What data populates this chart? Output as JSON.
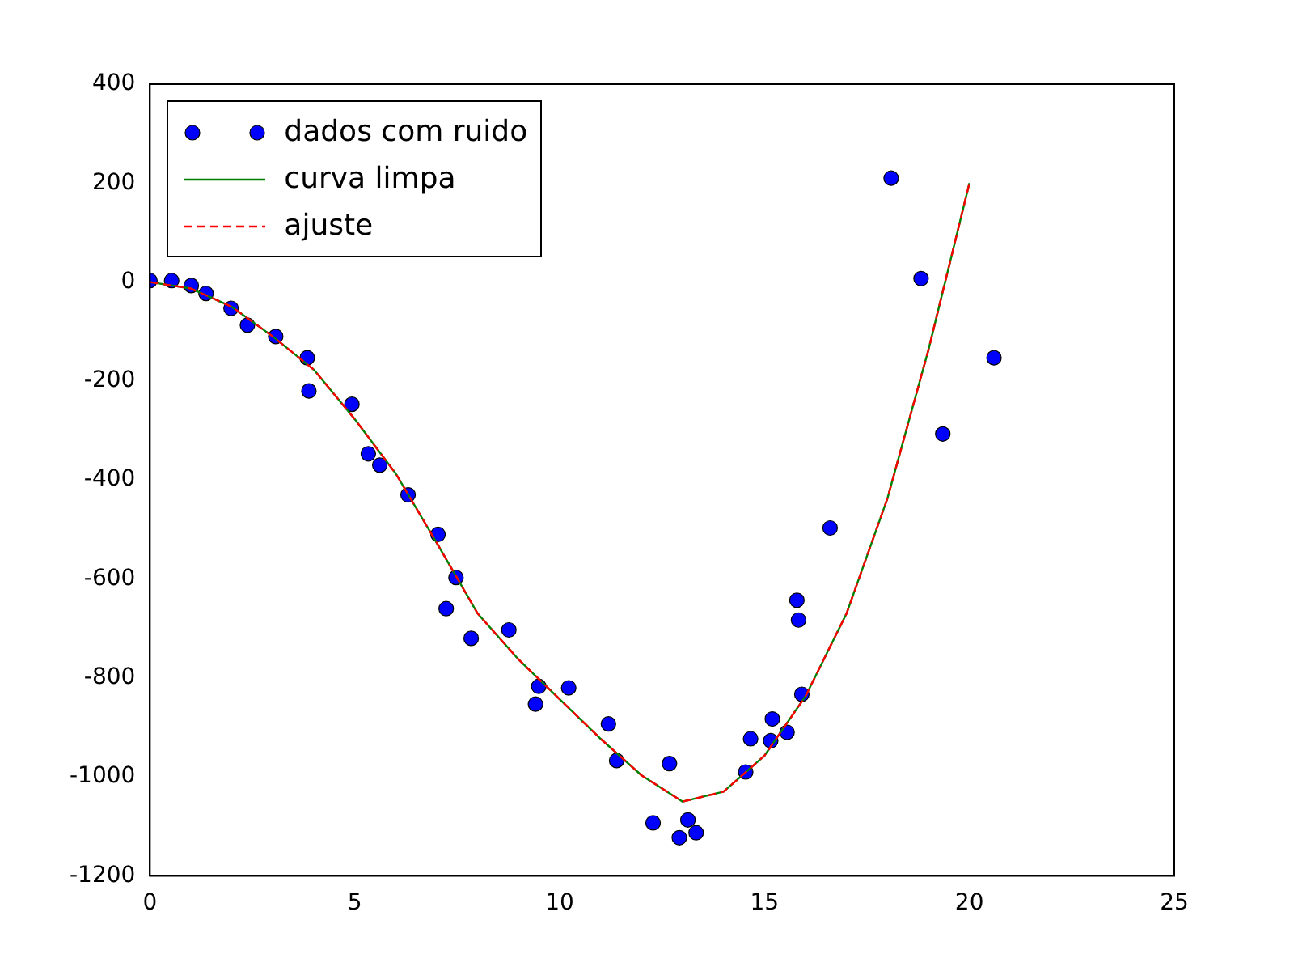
{
  "chart_data": {
    "type": "scatter",
    "xlim": [
      0,
      25
    ],
    "ylim": [
      -1200,
      400
    ],
    "xticks": [
      0,
      5,
      10,
      15,
      20,
      25
    ],
    "yticks": [
      -1200,
      -1000,
      -800,
      -600,
      -400,
      -200,
      0,
      200,
      400
    ],
    "grid": false,
    "legend": "top left",
    "series": [
      {
        "type": "scatter",
        "name": "dados com ruido",
        "color": "#0000ff",
        "marker": "circle",
        "x": [
          0,
          0.53,
          1.01,
          1.37,
          1.98,
          2.38,
          3.07,
          3.84,
          3.88,
          4.93,
          5.33,
          5.61,
          6.3,
          7.03,
          7.47,
          7.23,
          7.84,
          8.76,
          9.49,
          9.41,
          10.22,
          11.19,
          11.39,
          12.28,
          12.68,
          12.92,
          13.13,
          13.33,
          14.54,
          14.66,
          15.15,
          15.19,
          15.55,
          15.79,
          15.83,
          15.91,
          16.6,
          18.09,
          18.82,
          19.35,
          20.6
        ],
        "values": [
          3,
          3,
          -7,
          -23,
          -53,
          -87,
          -110,
          -153,
          -220,
          -247,
          -347,
          -370,
          -430,
          -510,
          -597,
          -660,
          -720,
          -703,
          -817,
          -853,
          -820,
          -893,
          -967,
          -1093,
          -973,
          -1123,
          -1087,
          -1113,
          -990,
          -923,
          -927,
          -883,
          -910,
          -643,
          -683,
          -833,
          -497,
          210,
          7,
          -307,
          -153
        ]
      },
      {
        "type": "line",
        "name": "curva limpa",
        "color": "#008000",
        "marker": "none",
        "line_style": "solid",
        "x": [
          0,
          1,
          2,
          3,
          4,
          5,
          6,
          7,
          8,
          9,
          10,
          11,
          12,
          13,
          14,
          15,
          16,
          17,
          18,
          19,
          20
        ],
        "values": [
          0,
          -13,
          -50,
          -110,
          -177,
          -277,
          -387,
          -527,
          -670,
          -763,
          -843,
          -923,
          -997,
          -1050,
          -1030,
          -957,
          -837,
          -670,
          -437,
          -137,
          200
        ]
      },
      {
        "type": "line",
        "name": "ajuste",
        "color": "#ff0000",
        "marker": "none",
        "line_style": "dashed",
        "x": [
          0,
          1,
          2,
          3,
          4,
          5,
          6,
          7,
          8,
          9,
          10,
          11,
          12,
          13,
          14,
          15,
          16,
          17,
          18,
          19,
          20
        ],
        "values": [
          0,
          -13,
          -50,
          -110,
          -177,
          -277,
          -387,
          -527,
          -670,
          -763,
          -843,
          -923,
          -997,
          -1050,
          -1030,
          -957,
          -837,
          -670,
          -437,
          -137,
          200
        ]
      }
    ]
  }
}
